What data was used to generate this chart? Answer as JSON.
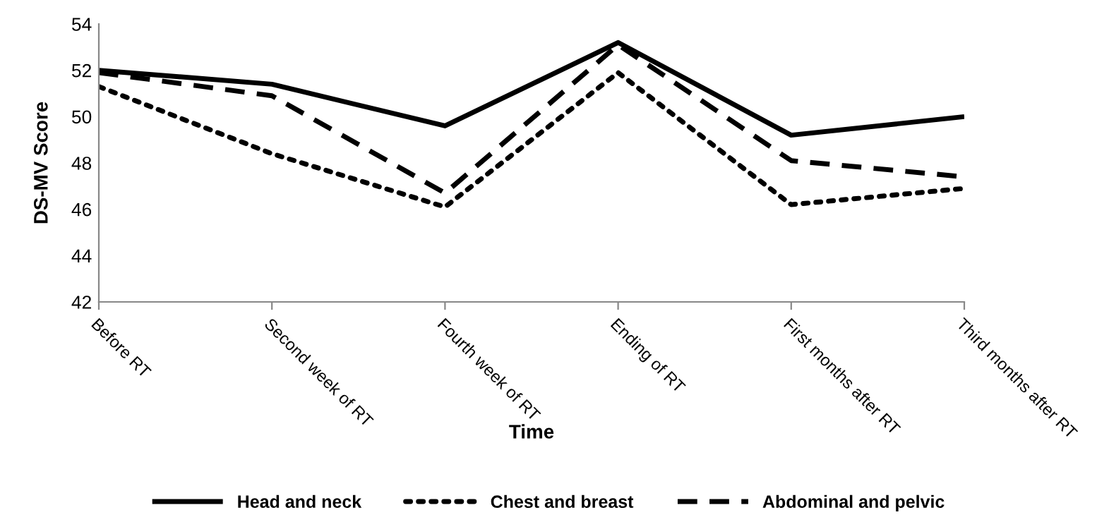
{
  "chart_data": {
    "type": "line",
    "xlabel": "Time",
    "ylabel": "DS-MV Score",
    "categories": [
      "Before RT",
      "Second week of RT",
      "Fourth week of RT",
      "Ending of RT",
      "First months after RT",
      "Third months after RT"
    ],
    "series": [
      {
        "name": "Head and neck",
        "color": "#000000",
        "line_style": "solid",
        "values": [
          52.0,
          51.4,
          49.6,
          53.2,
          49.2,
          50.0
        ]
      },
      {
        "name": "Chest and breast",
        "color": "#000000",
        "line_style": "dotted",
        "values": [
          51.3,
          48.4,
          46.1,
          51.9,
          46.2,
          46.9
        ]
      },
      {
        "name": "Abdominal and pelvic",
        "color": "#000000",
        "line_style": "dashed",
        "values": [
          51.9,
          50.9,
          46.7,
          53.1,
          48.1,
          47.4
        ]
      }
    ],
    "ylim": [
      42,
      54
    ],
    "yticks": [
      42,
      44,
      46,
      48,
      50,
      52,
      54
    ],
    "grid": false,
    "legend": "bottom"
  }
}
